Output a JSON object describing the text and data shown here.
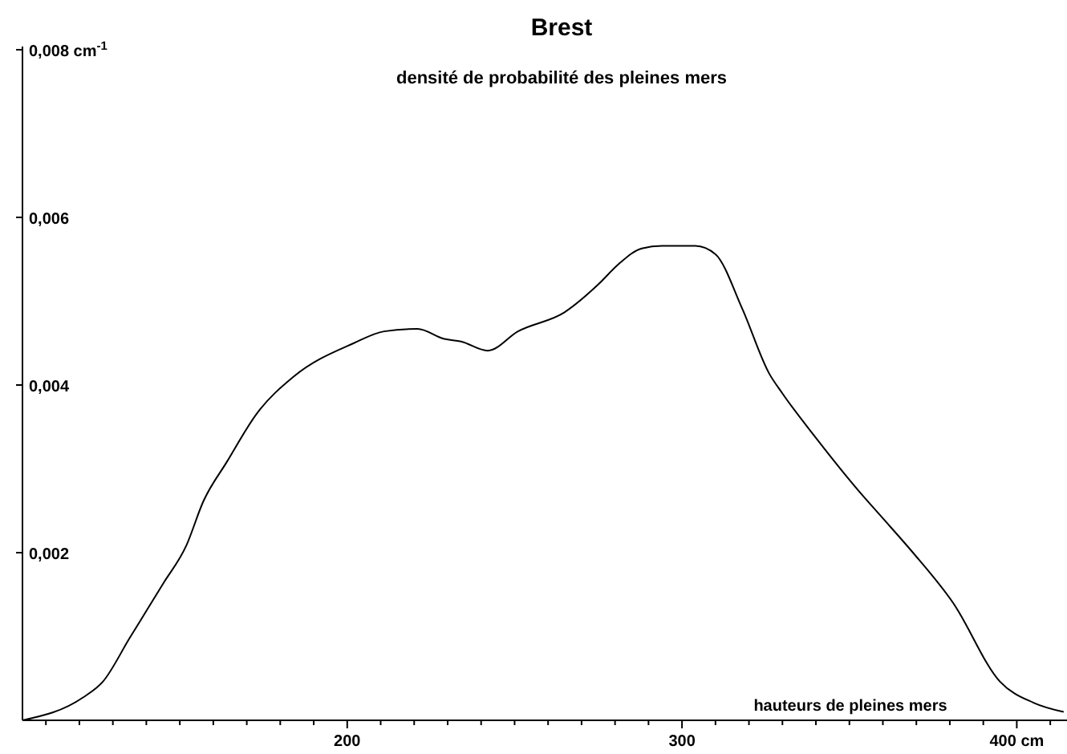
{
  "chart_data": {
    "type": "line",
    "title": "Brest",
    "subtitle": "densité de probabilité des pleines mers",
    "xlabel": "hauteurs de pleines mers",
    "x": [
      103,
      121,
      127,
      135,
      145,
      152,
      157,
      164,
      173,
      184,
      202,
      211,
      221,
      229,
      234,
      242,
      251,
      265,
      275,
      281,
      288,
      294,
      304,
      310,
      318,
      326,
      330,
      340,
      354,
      360,
      369,
      381,
      395,
      405,
      414
    ],
    "series": [
      {
        "color": "#000000",
        "values": [
          0,
          0.00027,
          0.00046,
          0.00098,
          0.00163,
          0.00209,
          0.00261,
          0.00308,
          0.00366,
          0.0041,
          0.0045,
          0.00464,
          0.00467,
          0.00455,
          0.00452,
          0.00441,
          0.00464,
          0.00487,
          0.0052,
          0.00544,
          0.00563,
          0.00566,
          0.00566,
          0.00556,
          0.00491,
          0.00414,
          0.0039,
          0.00337,
          0.00268,
          0.00241,
          0.002,
          0.0014,
          0.00046,
          0.00021,
          0.0001
        ]
      }
    ],
    "xlim": [
      103,
      415
    ],
    "ylim": [
      0,
      0.008
    ],
    "xticks": [
      {
        "value": 110,
        "label": null
      },
      {
        "value": 120,
        "label": null
      },
      {
        "value": 130,
        "label": null
      },
      {
        "value": 140,
        "label": null
      },
      {
        "value": 150,
        "label": null
      },
      {
        "value": 160,
        "label": null
      },
      {
        "value": 170,
        "label": null
      },
      {
        "value": 180,
        "label": null
      },
      {
        "value": 190,
        "label": null
      },
      200,
      {
        "value": 210,
        "label": null
      },
      {
        "value": 220,
        "label": null
      },
      {
        "value": 230,
        "label": null
      },
      {
        "value": 240,
        "label": null
      },
      {
        "value": 250,
        "label": null
      },
      {
        "value": 260,
        "label": null
      },
      {
        "value": 270,
        "label": null
      },
      {
        "value": 280,
        "label": null
      },
      {
        "value": 290,
        "label": null
      },
      300,
      {
        "value": 310,
        "label": null
      },
      {
        "value": 320,
        "label": null
      },
      {
        "value": 330,
        "label": null
      },
      {
        "value": 340,
        "label": null
      },
      {
        "value": 350,
        "label": null
      },
      {
        "value": 360,
        "label": null
      },
      {
        "value": 370,
        "label": null
      },
      {
        "value": 380,
        "label": null
      },
      {
        "value": 390,
        "label": null
      },
      {
        "value": 400,
        "label": "400 cm"
      },
      {
        "value": 410,
        "label": null
      }
    ],
    "yticks": [
      {
        "value": 0.002,
        "label": "0,002"
      },
      {
        "value": 0.004,
        "label": "0,004"
      },
      {
        "value": 0.006,
        "label": "0,006"
      },
      {
        "value": 0.008,
        "label": "0,008 cm$^{-1}$"
      }
    ],
    "grid": false,
    "marker": "none",
    "line_style": "solid"
  }
}
